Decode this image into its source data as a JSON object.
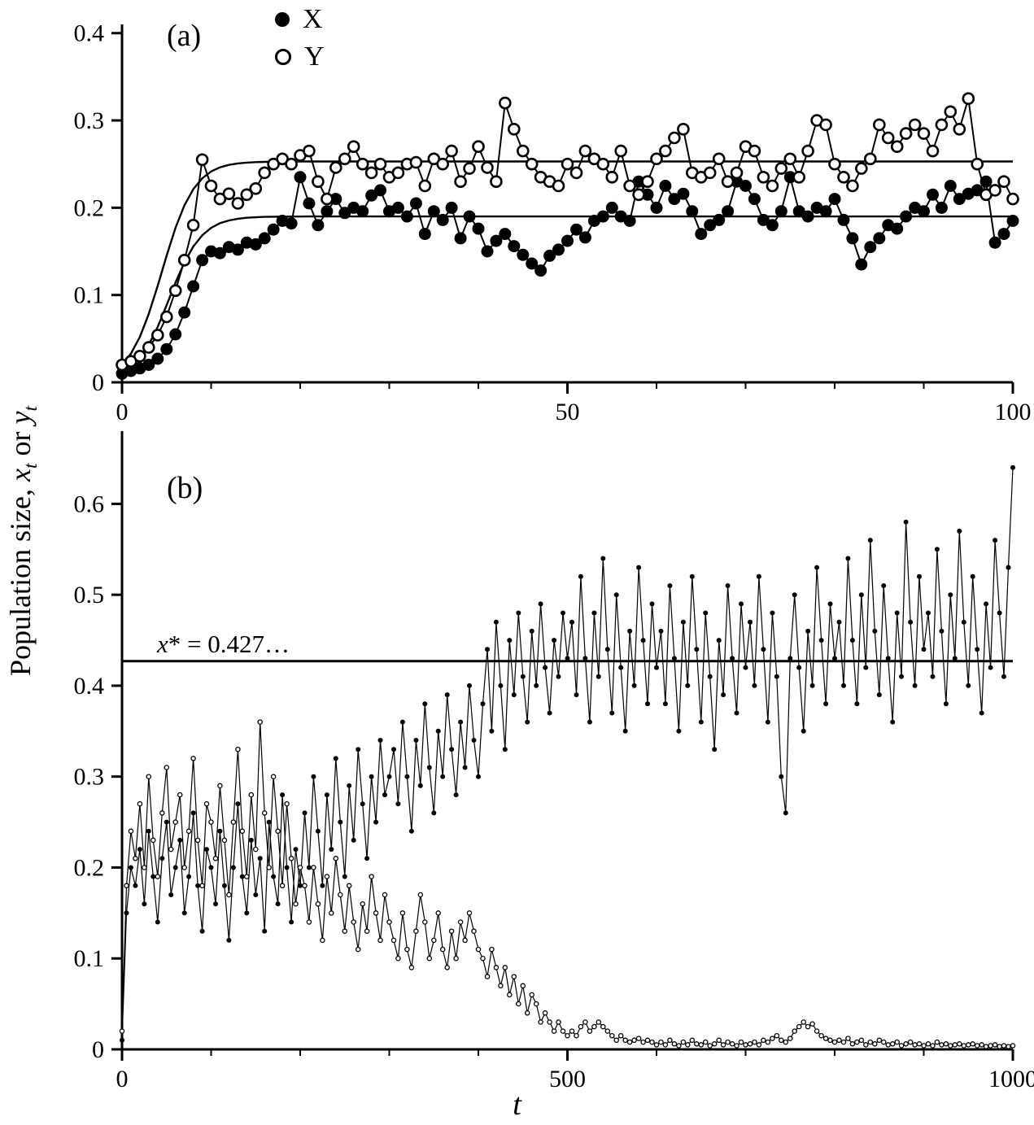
{
  "chart_data": {
    "type": "line",
    "xlabel": "t",
    "ylabel": {
      "prefix": "Population size, ",
      "var1": "x",
      "sub1": "t",
      "mid": " or ",
      "var2": "y",
      "sub2": "t"
    },
    "legend": [
      {
        "marker": "filled-circle",
        "label": "X"
      },
      {
        "marker": "open-circle",
        "label": "Y"
      }
    ],
    "colors": {
      "stroke": "#000000",
      "background": "#ffffff"
    },
    "panels": [
      {
        "id": "a",
        "label": "(a)",
        "x_axis": {
          "min": 0,
          "max": 100,
          "major_ticks": [
            0,
            50,
            100
          ],
          "major_tick_labels": [
            "0",
            "50",
            "100"
          ],
          "minor_step": 10
        },
        "y_axis": {
          "min": 0,
          "max": 0.41,
          "ticks": [
            0,
            0.1,
            0.2,
            0.3,
            0.4
          ],
          "tick_labels": [
            "0",
            "0.1",
            "0.2",
            "0.3",
            "0.4"
          ]
        },
        "fitted_curves": [
          {
            "name": "X-logistic-equilibrium",
            "K": 0.19,
            "x0": 0.01,
            "r": 0.55
          },
          {
            "name": "Y-logistic-equilibrium",
            "K": 0.253,
            "x0": 0.02,
            "r": 0.55
          }
        ],
        "series": [
          {
            "name": "X",
            "marker": "filled-circle",
            "t_start": 0,
            "t_step": 1,
            "values": [
              0.01,
              0.013,
              0.016,
              0.02,
              0.027,
              0.038,
              0.055,
              0.08,
              0.11,
              0.14,
              0.15,
              0.148,
              0.155,
              0.152,
              0.16,
              0.158,
              0.165,
              0.175,
              0.185,
              0.182,
              0.235,
              0.205,
              0.18,
              0.196,
              0.21,
              0.194,
              0.2,
              0.196,
              0.214,
              0.22,
              0.196,
              0.2,
              0.19,
              0.205,
              0.17,
              0.196,
              0.186,
              0.2,
              0.165,
              0.19,
              0.176,
              0.15,
              0.162,
              0.17,
              0.156,
              0.146,
              0.136,
              0.128,
              0.145,
              0.152,
              0.162,
              0.175,
              0.166,
              0.185,
              0.19,
              0.2,
              0.19,
              0.185,
              0.23,
              0.215,
              0.2,
              0.225,
              0.21,
              0.216,
              0.196,
              0.17,
              0.18,
              0.186,
              0.196,
              0.23,
              0.225,
              0.21,
              0.186,
              0.18,
              0.196,
              0.235,
              0.196,
              0.19,
              0.2,
              0.196,
              0.21,
              0.186,
              0.165,
              0.135,
              0.155,
              0.165,
              0.18,
              0.176,
              0.19,
              0.2,
              0.196,
              0.215,
              0.2,
              0.225,
              0.21,
              0.216,
              0.22,
              0.23,
              0.16,
              0.17,
              0.185
            ]
          },
          {
            "name": "Y",
            "marker": "open-circle",
            "t_start": 0,
            "t_step": 1,
            "values": [
              0.02,
              0.024,
              0.03,
              0.04,
              0.054,
              0.075,
              0.105,
              0.14,
              0.18,
              0.255,
              0.225,
              0.21,
              0.216,
              0.205,
              0.215,
              0.222,
              0.24,
              0.25,
              0.256,
              0.25,
              0.26,
              0.265,
              0.23,
              0.21,
              0.246,
              0.256,
              0.27,
              0.25,
              0.24,
              0.25,
              0.235,
              0.24,
              0.25,
              0.252,
              0.225,
              0.256,
              0.25,
              0.265,
              0.23,
              0.245,
              0.27,
              0.246,
              0.23,
              0.32,
              0.29,
              0.265,
              0.25,
              0.235,
              0.23,
              0.225,
              0.25,
              0.24,
              0.265,
              0.256,
              0.25,
              0.235,
              0.265,
              0.225,
              0.215,
              0.23,
              0.256,
              0.265,
              0.28,
              0.29,
              0.24,
              0.235,
              0.24,
              0.256,
              0.23,
              0.24,
              0.27,
              0.265,
              0.235,
              0.225,
              0.245,
              0.256,
              0.235,
              0.265,
              0.3,
              0.295,
              0.25,
              0.235,
              0.225,
              0.245,
              0.256,
              0.295,
              0.28,
              0.27,
              0.285,
              0.295,
              0.285,
              0.265,
              0.295,
              0.31,
              0.29,
              0.325,
              0.25,
              0.215,
              0.22,
              0.23,
              0.21
            ]
          }
        ]
      },
      {
        "id": "b",
        "label": "(b)",
        "x_axis": {
          "min": 0,
          "max": 1000,
          "major_ticks": [
            0,
            500,
            1000
          ],
          "major_tick_labels": [
            "0",
            "500",
            "1000"
          ],
          "minor_step": 100
        },
        "y_axis": {
          "min": 0,
          "max": 0.68,
          "ticks": [
            0,
            0.1,
            0.2,
            0.3,
            0.4,
            0.5,
            0.6
          ],
          "tick_labels": [
            "0",
            "0.1",
            "0.2",
            "0.3",
            "0.4",
            "0.5",
            "0.6"
          ]
        },
        "reference_line": {
          "value": 0.427,
          "label_var": "x",
          "label_rest": "* = 0.427…"
        },
        "series": [
          {
            "name": "X",
            "marker": "filled-circle",
            "t_start": 0,
            "t_step": 5,
            "values": [
              0.01,
              0.15,
              0.2,
              0.18,
              0.22,
              0.16,
              0.24,
              0.19,
              0.14,
              0.21,
              0.25,
              0.17,
              0.2,
              0.23,
              0.15,
              0.19,
              0.26,
              0.18,
              0.13,
              0.22,
              0.2,
              0.16,
              0.24,
              0.18,
              0.12,
              0.2,
              0.27,
              0.19,
              0.15,
              0.23,
              0.17,
              0.21,
              0.13,
              0.25,
              0.19,
              0.16,
              0.28,
              0.2,
              0.14,
              0.22,
              0.18,
              0.26,
              0.2,
              0.3,
              0.24,
              0.18,
              0.28,
              0.22,
              0.32,
              0.25,
              0.19,
              0.29,
              0.23,
              0.33,
              0.27,
              0.21,
              0.3,
              0.25,
              0.34,
              0.28,
              0.3,
              0.33,
              0.27,
              0.36,
              0.3,
              0.24,
              0.34,
              0.29,
              0.38,
              0.31,
              0.26,
              0.35,
              0.3,
              0.39,
              0.33,
              0.28,
              0.36,
              0.31,
              0.4,
              0.34,
              0.3,
              0.38,
              0.44,
              0.35,
              0.47,
              0.4,
              0.33,
              0.45,
              0.39,
              0.48,
              0.41,
              0.36,
              0.46,
              0.4,
              0.49,
              0.42,
              0.37,
              0.45,
              0.41,
              0.48,
              0.43,
              0.47,
              0.39,
              0.52,
              0.43,
              0.36,
              0.48,
              0.41,
              0.54,
              0.44,
              0.37,
              0.5,
              0.42,
              0.35,
              0.46,
              0.4,
              0.53,
              0.45,
              0.38,
              0.49,
              0.42,
              0.46,
              0.38,
              0.51,
              0.43,
              0.35,
              0.47,
              0.4,
              0.52,
              0.44,
              0.36,
              0.48,
              0.41,
              0.33,
              0.45,
              0.39,
              0.51,
              0.43,
              0.37,
              0.49,
              0.42,
              0.47,
              0.4,
              0.52,
              0.44,
              0.36,
              0.48,
              0.41,
              0.3,
              0.26,
              0.43,
              0.5,
              0.42,
              0.35,
              0.46,
              0.4,
              0.53,
              0.45,
              0.38,
              0.49,
              0.43,
              0.47,
              0.4,
              0.54,
              0.45,
              0.38,
              0.5,
              0.42,
              0.56,
              0.46,
              0.39,
              0.51,
              0.43,
              0.36,
              0.48,
              0.41,
              0.58,
              0.47,
              0.4,
              0.52,
              0.44,
              0.48,
              0.41,
              0.55,
              0.46,
              0.38,
              0.5,
              0.43,
              0.57,
              0.47,
              0.4,
              0.52,
              0.44,
              0.37,
              0.49,
              0.42,
              0.56,
              0.48,
              0.41,
              0.53,
              0.64
            ]
          },
          {
            "name": "Y",
            "marker": "open-circle",
            "t_start": 0,
            "t_step": 5,
            "values": [
              0.02,
              0.18,
              0.24,
              0.21,
              0.27,
              0.2,
              0.3,
              0.23,
              0.19,
              0.26,
              0.31,
              0.22,
              0.25,
              0.28,
              0.2,
              0.24,
              0.32,
              0.23,
              0.18,
              0.27,
              0.25,
              0.21,
              0.29,
              0.23,
              0.17,
              0.25,
              0.33,
              0.24,
              0.19,
              0.28,
              0.22,
              0.36,
              0.26,
              0.2,
              0.3,
              0.24,
              0.18,
              0.27,
              0.21,
              0.16,
              0.2,
              0.18,
              0.14,
              0.2,
              0.16,
              0.12,
              0.19,
              0.15,
              0.21,
              0.17,
              0.13,
              0.18,
              0.14,
              0.11,
              0.16,
              0.13,
              0.19,
              0.15,
              0.12,
              0.17,
              0.14,
              0.12,
              0.1,
              0.15,
              0.11,
              0.09,
              0.13,
              0.17,
              0.14,
              0.1,
              0.12,
              0.15,
              0.11,
              0.09,
              0.13,
              0.1,
              0.14,
              0.12,
              0.15,
              0.13,
              0.11,
              0.1,
              0.08,
              0.11,
              0.09,
              0.07,
              0.09,
              0.06,
              0.08,
              0.05,
              0.07,
              0.04,
              0.06,
              0.05,
              0.03,
              0.04,
              0.03,
              0.02,
              0.03,
              0.02,
              0.015,
              0.02,
              0.015,
              0.025,
              0.03,
              0.02,
              0.025,
              0.03,
              0.025,
              0.02,
              0.015,
              0.01,
              0.015,
              0.01,
              0.008,
              0.01,
              0.012,
              0.008,
              0.01,
              0.008,
              0.005,
              0.008,
              0.005,
              0.01,
              0.006,
              0.004,
              0.008,
              0.005,
              0.01,
              0.006,
              0.005,
              0.008,
              0.004,
              0.006,
              0.01,
              0.005,
              0.008,
              0.006,
              0.004,
              0.008,
              0.005,
              0.006,
              0.008,
              0.005,
              0.01,
              0.008,
              0.012,
              0.015,
              0.01,
              0.008,
              0.012,
              0.02,
              0.025,
              0.03,
              0.025,
              0.028,
              0.02,
              0.015,
              0.012,
              0.01,
              0.008,
              0.01,
              0.008,
              0.012,
              0.006,
              0.008,
              0.01,
              0.005,
              0.008,
              0.006,
              0.01,
              0.008,
              0.005,
              0.006,
              0.008,
              0.004,
              0.006,
              0.008,
              0.005,
              0.006,
              0.004,
              0.006,
              0.004,
              0.008,
              0.005,
              0.006,
              0.004,
              0.005,
              0.006,
              0.004,
              0.005,
              0.006,
              0.004,
              0.005,
              0.003,
              0.004,
              0.005,
              0.003,
              0.004,
              0.003,
              0.004
            ]
          }
        ]
      }
    ]
  }
}
